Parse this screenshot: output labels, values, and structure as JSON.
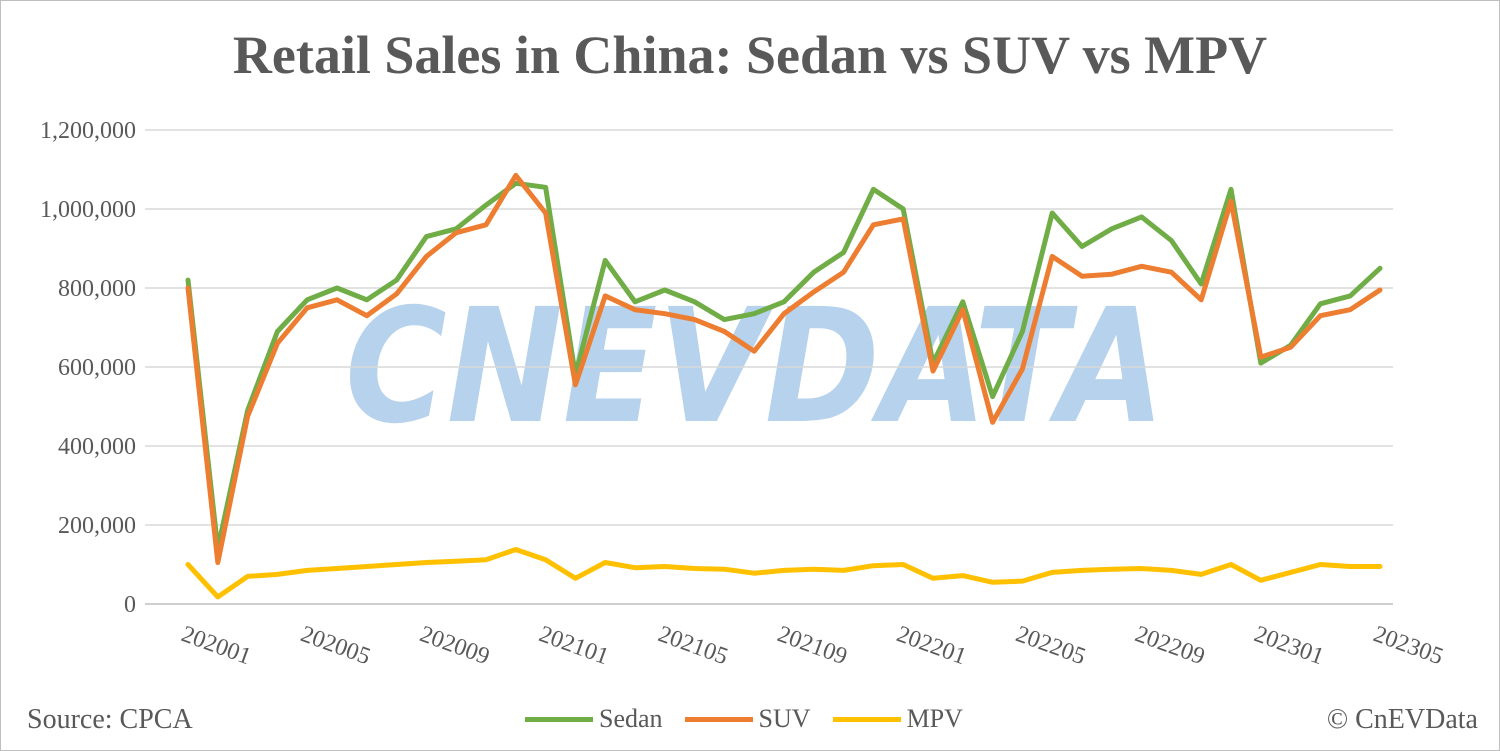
{
  "chart_data": {
    "type": "line",
    "title": "Retail Sales in China: Sedan vs SUV vs MPV",
    "xlabel": "",
    "ylabel": "",
    "ylim": [
      0,
      1200000
    ],
    "y_ticks": [
      "1,200,000",
      "1,000,000",
      "800,000",
      "600,000",
      "400,000",
      "200,000",
      "0"
    ],
    "x_tick_labels": [
      "202001",
      "202005",
      "202009",
      "202101",
      "202105",
      "202109",
      "202201",
      "202205",
      "202209",
      "202301",
      "202305"
    ],
    "categories": [
      "202001",
      "202002",
      "202003",
      "202004",
      "202005",
      "202006",
      "202007",
      "202008",
      "202009",
      "202010",
      "202011",
      "202012",
      "202101",
      "202102",
      "202103",
      "202104",
      "202105",
      "202106",
      "202107",
      "202108",
      "202109",
      "202110",
      "202111",
      "202112",
      "202201",
      "202202",
      "202203",
      "202204",
      "202205",
      "202206",
      "202207",
      "202208",
      "202209",
      "202210",
      "202211",
      "202212",
      "202301",
      "202302",
      "202303",
      "202304",
      "202305"
    ],
    "series": [
      {
        "name": "Sedan",
        "color": "#70ad47",
        "values": [
          820000,
          140000,
          490000,
          690000,
          770000,
          800000,
          770000,
          820000,
          930000,
          950000,
          1010000,
          1065000,
          1055000,
          580000,
          870000,
          765000,
          795000,
          765000,
          720000,
          735000,
          765000,
          840000,
          890000,
          1050000,
          1000000,
          610000,
          765000,
          525000,
          690000,
          990000,
          905000,
          950000,
          980000,
          920000,
          810000,
          1050000,
          610000,
          655000,
          760000,
          780000,
          850000
        ]
      },
      {
        "name": "SUV",
        "color": "#ed7d31",
        "values": [
          800000,
          105000,
          475000,
          660000,
          750000,
          770000,
          730000,
          785000,
          880000,
          940000,
          960000,
          1085000,
          990000,
          555000,
          780000,
          745000,
          735000,
          720000,
          690000,
          640000,
          735000,
          790000,
          840000,
          960000,
          975000,
          590000,
          745000,
          460000,
          595000,
          880000,
          830000,
          835000,
          855000,
          840000,
          770000,
          1020000,
          625000,
          650000,
          730000,
          745000,
          795000
        ]
      },
      {
        "name": "MPV",
        "color": "#ffc000",
        "values": [
          100000,
          18000,
          70000,
          75000,
          85000,
          90000,
          95000,
          100000,
          105000,
          108000,
          112000,
          138000,
          112000,
          65000,
          105000,
          92000,
          95000,
          90000,
          88000,
          78000,
          85000,
          88000,
          85000,
          97000,
          100000,
          65000,
          72000,
          55000,
          58000,
          80000,
          85000,
          88000,
          90000,
          85000,
          75000,
          100000,
          60000,
          80000,
          100000,
          95000,
          95000
        ]
      }
    ],
    "legend_position": "bottom",
    "grid": true
  },
  "watermark": "CnEVData",
  "footer": {
    "source": "Source: CPCA",
    "copyright": "© CnEVData"
  }
}
